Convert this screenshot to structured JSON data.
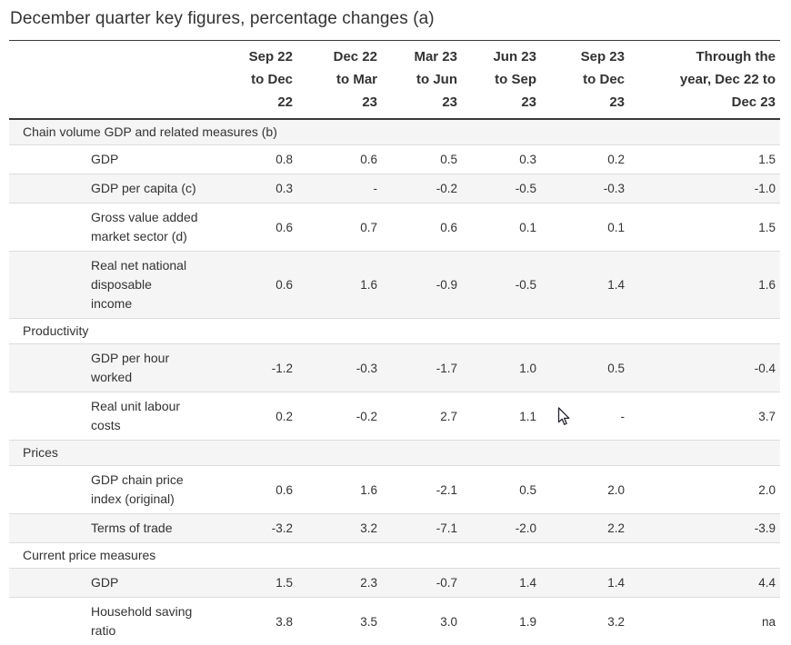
{
  "chart_data": {
    "type": "table",
    "title": "December quarter key figures, percentage changes (a)",
    "columns": [
      {
        "label": "Sep 22 to Dec 22",
        "wrap": "Sep 22\nto Dec\n22"
      },
      {
        "label": "Dec 22 to Mar 23",
        "wrap": "Dec 22\nto Mar\n23"
      },
      {
        "label": "Mar 23 to Jun 23",
        "wrap": "Mar 23\nto Jun\n23"
      },
      {
        "label": "Jun 23 to Sep 23",
        "wrap": "Jun 23\nto Sep\n23"
      },
      {
        "label": "Sep 23 to Dec 23",
        "wrap": "Sep 23\nto Dec\n23"
      },
      {
        "label": "Through the year, Dec 22 to Dec 23",
        "wrap": "Through the\nyear, Dec 22 to\nDec 23"
      }
    ],
    "rows": [
      {
        "type": "section",
        "label": "Chain volume GDP and related measures (b)"
      },
      {
        "type": "data",
        "label": "GDP",
        "values": [
          "0.8",
          "0.6",
          "0.5",
          "0.3",
          "0.2",
          "1.5"
        ]
      },
      {
        "type": "data",
        "label": "GDP per capita (c)",
        "values": [
          "0.3",
          "-",
          "-0.2",
          "-0.5",
          "-0.3",
          "-1.0"
        ]
      },
      {
        "type": "data",
        "label": "Gross value added market sector (d)",
        "wrap": "Gross value added\nmarket sector (d)",
        "values": [
          "0.6",
          "0.7",
          "0.6",
          "0.1",
          "0.1",
          "1.5"
        ]
      },
      {
        "type": "data",
        "label": "Real net national disposable income",
        "wrap": "Real net national\ndisposable\nincome",
        "values": [
          "0.6",
          "1.6",
          "-0.9",
          "-0.5",
          "1.4",
          "1.6"
        ]
      },
      {
        "type": "section",
        "label": "Productivity"
      },
      {
        "type": "data",
        "label": "GDP per hour worked",
        "wrap": "GDP per hour\nworked",
        "values": [
          "-1.2",
          "-0.3",
          "-1.7",
          "1.0",
          "0.5",
          "-0.4"
        ]
      },
      {
        "type": "data",
        "label": "Real unit labour costs",
        "wrap": "Real unit labour\ncosts",
        "values": [
          "0.2",
          "-0.2",
          "2.7",
          "1.1",
          "-",
          "3.7"
        ]
      },
      {
        "type": "section",
        "label": "Prices"
      },
      {
        "type": "data",
        "label": "GDP chain price index (original)",
        "wrap": "GDP chain price\nindex (original)",
        "values": [
          "0.6",
          "1.6",
          "-2.1",
          "0.5",
          "2.0",
          "2.0"
        ]
      },
      {
        "type": "data",
        "label": "Terms of trade",
        "values": [
          "-3.2",
          "3.2",
          "-7.1",
          "-2.0",
          "2.2",
          "-3.9"
        ]
      },
      {
        "type": "section",
        "label": "Current price measures"
      },
      {
        "type": "data",
        "label": "GDP",
        "values": [
          "1.5",
          "2.3",
          "-0.7",
          "1.4",
          "1.4",
          "4.4"
        ]
      },
      {
        "type": "data",
        "label": "Household saving ratio",
        "wrap": "Household saving\nratio",
        "values": [
          "3.8",
          "3.5",
          "3.0",
          "1.9",
          "3.2",
          "na"
        ]
      }
    ],
    "colors": {
      "stripe": "#f5f5f5",
      "row_border": "#dddddd",
      "rule_dark": "#3a3a3a",
      "text": "#333333"
    },
    "layout_hints": {
      "value_alignment": "right",
      "striped": true
    }
  },
  "icons": {
    "mouse_cursor": "arrow-pointer"
  }
}
